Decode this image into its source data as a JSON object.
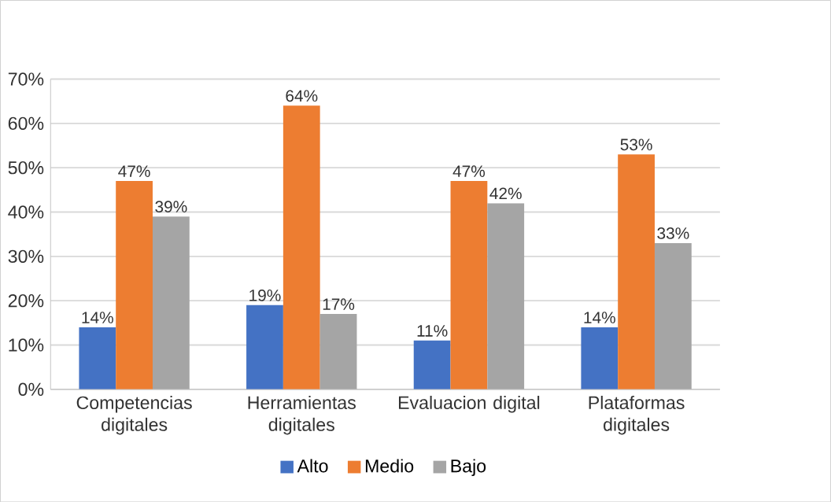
{
  "chart_data": {
    "type": "bar",
    "categories": [
      "Competencias digitales",
      "Herramientas digitales",
      "Evaluacion digital",
      "Plataformas digitales"
    ],
    "series": [
      {
        "name": "Alto",
        "color": "#4472c4",
        "values": [
          14,
          19,
          11,
          14
        ],
        "value_labels": [
          "14%",
          "19%",
          "11%",
          "14%"
        ]
      },
      {
        "name": "Medio",
        "color": "#ed7d31",
        "values": [
          47,
          64,
          47,
          53
        ],
        "value_labels": [
          "47%",
          "64%",
          "47%",
          "53%"
        ]
      },
      {
        "name": "Bajo",
        "color": "#a5a5a5",
        "values": [
          39,
          17,
          42,
          33
        ],
        "value_labels": [
          "39%",
          "17%",
          "42%",
          "33%"
        ]
      }
    ],
    "ylim": [
      0,
      70
    ],
    "yticks": [
      {
        "value": 0,
        "label": "0%"
      },
      {
        "value": 10,
        "label": "10%"
      },
      {
        "value": 20,
        "label": "20%"
      },
      {
        "value": 30,
        "label": "30%"
      },
      {
        "value": 40,
        "label": "40%"
      },
      {
        "value": 50,
        "label": "50%"
      },
      {
        "value": 60,
        "label": "60%"
      },
      {
        "value": 70,
        "label": "70%"
      }
    ],
    "grid": "y",
    "legend": "bottom"
  }
}
